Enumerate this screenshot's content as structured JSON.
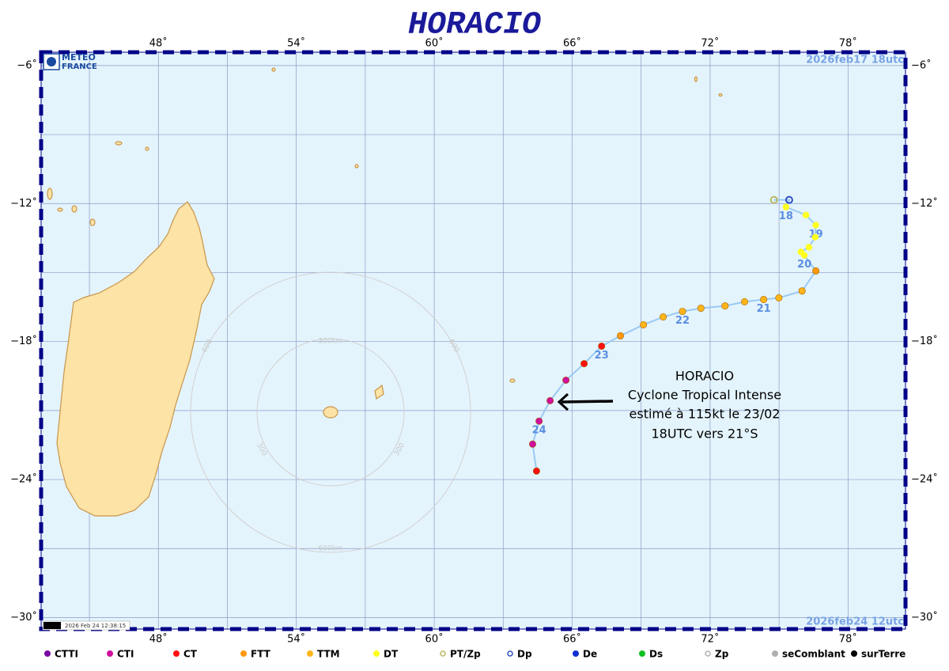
{
  "header": {
    "title": "HORACIO"
  },
  "logo": {
    "lines": [
      "METEO",
      "FRANCE"
    ]
  },
  "map": {
    "lon_range": [
      42.9,
      80.5
    ],
    "lat_range": [
      -5.42,
      -30.5
    ],
    "lon_ticks": [
      {
        "value": 48,
        "label": "48˚"
      },
      {
        "value": 54,
        "label": "54˚"
      },
      {
        "value": 60,
        "label": "60˚"
      },
      {
        "value": 66,
        "label": "66˚"
      },
      {
        "value": 72,
        "label": "72˚"
      },
      {
        "value": 78,
        "label": "78˚"
      }
    ],
    "lat_ticks": [
      {
        "value": -6,
        "label": "−6˚"
      },
      {
        "value": -12,
        "label": "−12˚"
      },
      {
        "value": -18,
        "label": "−18˚"
      },
      {
        "value": -24,
        "label": "−24˚"
      },
      {
        "value": -30,
        "label": "−30˚"
      }
    ],
    "minor_grid_lon": [
      45,
      51,
      57,
      63,
      69,
      75
    ],
    "minor_grid_lat": [
      -9,
      -15,
      -21,
      -27
    ],
    "date_start": "2026feb17  18utc",
    "date_end": "2026feb24  12utc",
    "timestamp": "2026 Feb 24 12:38:15",
    "ring_labels": [
      "300km",
      "600km",
      "300",
      "300",
      "600",
      "600"
    ]
  },
  "track": {
    "color": "#99c9f5",
    "points": [
      {
        "lon": 74.78,
        "lat": -11.84,
        "category": "PT/Zp"
      },
      {
        "lon": 75.44,
        "lat": -11.84,
        "category": "Dp"
      },
      {
        "lon": 75.3,
        "lat": -12.15,
        "category": "DT",
        "label": "18"
      },
      {
        "lon": 76.17,
        "lat": -12.5,
        "category": "DT"
      },
      {
        "lon": 76.6,
        "lat": -12.94,
        "category": "DT",
        "label": "19"
      },
      {
        "lon": 76.57,
        "lat": -13.46,
        "category": "DT"
      },
      {
        "lon": 76.3,
        "lat": -13.9,
        "category": "DT"
      },
      {
        "lon": 75.95,
        "lat": -14.1,
        "category": "DT"
      },
      {
        "lon": 76.1,
        "lat": -14.25,
        "category": "DT",
        "label": "20"
      },
      {
        "lon": 76.6,
        "lat": -14.93,
        "category": "FTT"
      },
      {
        "lon": 76.0,
        "lat": -15.8,
        "category": "TTM"
      },
      {
        "lon": 74.99,
        "lat": -16.1,
        "category": "TTM"
      },
      {
        "lon": 74.33,
        "lat": -16.17,
        "category": "TTM",
        "label": "21"
      },
      {
        "lon": 73.5,
        "lat": -16.27,
        "category": "TTM"
      },
      {
        "lon": 72.65,
        "lat": -16.45,
        "category": "TTM"
      },
      {
        "lon": 71.6,
        "lat": -16.55,
        "category": "TTM"
      },
      {
        "lon": 70.8,
        "lat": -16.69,
        "category": "TTM",
        "label": "22"
      },
      {
        "lon": 69.96,
        "lat": -16.93,
        "category": "TTM"
      },
      {
        "lon": 69.1,
        "lat": -17.27,
        "category": "TTM"
      },
      {
        "lon": 68.1,
        "lat": -17.75,
        "category": "FTT"
      },
      {
        "lon": 67.28,
        "lat": -18.2,
        "category": "CT",
        "label": "23"
      },
      {
        "lon": 66.52,
        "lat": -18.96,
        "category": "CT"
      },
      {
        "lon": 65.73,
        "lat": -19.68,
        "category": "CTI"
      },
      {
        "lon": 65.04,
        "lat": -20.57,
        "category": "CTI"
      },
      {
        "lon": 64.56,
        "lat": -21.46,
        "category": "CTI",
        "label": "24"
      },
      {
        "lon": 64.28,
        "lat": -22.46,
        "category": "CTI"
      },
      {
        "lon": 64.45,
        "lat": -23.63,
        "category": "CT"
      }
    ]
  },
  "annotation": {
    "lines": [
      "HORACIO",
      "Cyclone Tropical Intense",
      "estimé à 115kt le 23/02",
      "18UTC vers 21°S"
    ]
  },
  "legend": [
    {
      "name": "CTTI",
      "color": "#7a0aa0",
      "style": "dot"
    },
    {
      "name": "CTI",
      "color": "#d0109c",
      "style": "dot"
    },
    {
      "name": "CT",
      "color": "#ff1010",
      "style": "dot"
    },
    {
      "name": "FTT",
      "color": "#ff9a10",
      "style": "dot"
    },
    {
      "name": "TTM",
      "color": "#ffb51a",
      "style": "dot"
    },
    {
      "name": "DT",
      "color": "#ffff20",
      "style": "dot"
    },
    {
      "name": "PT/Zp",
      "color": "#b8b860",
      "style": "ring"
    },
    {
      "name": "Dp",
      "color": "#3050c0",
      "style": "ring"
    },
    {
      "name": "De",
      "color": "#1030d0",
      "style": "dot"
    },
    {
      "name": "Ds",
      "color": "#10c020",
      "style": "dot"
    },
    {
      "name": "Zp",
      "color": "#b0b0b0",
      "style": "ring"
    },
    {
      "name": "seComblant",
      "color": "#b0b0b0",
      "style": "dot"
    },
    {
      "name": "surTerre",
      "color": "#000000",
      "style": "dot"
    }
  ]
}
